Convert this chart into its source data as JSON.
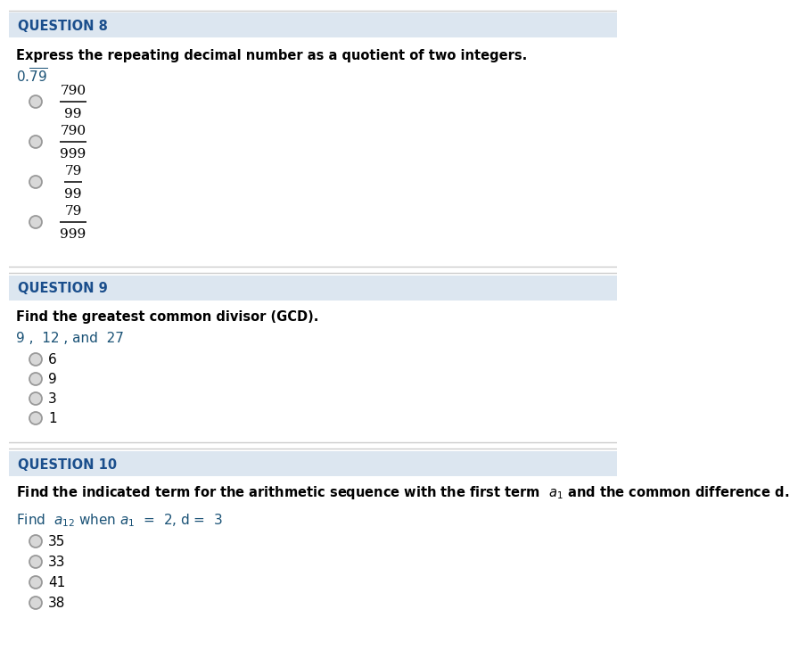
{
  "bg_color": "#ffffff",
  "border_color": "#cccccc",
  "q8_header": "QUESTION 8",
  "q8_instruction": "Express the repeating decimal number as a quotient of two integers.",
  "q8_problem": "0.$\\overline{79}$",
  "q8_options": [
    {
      "num": "790",
      "den": "99"
    },
    {
      "num": "790",
      "den": "999"
    },
    {
      "num": "79",
      "den": "99"
    },
    {
      "num": "79",
      "den": "999"
    }
  ],
  "q9_header": "QUESTION 9",
  "q9_instruction": "Find the greatest common divisor (GCD).",
  "q9_problem": "9 ,  12 , and  27",
  "q9_options": [
    "6",
    "9",
    "3",
    "1"
  ],
  "q10_header": "QUESTION 10",
  "q10_instruction": "Find the indicated term for the arithmetic sequence with the first term  $a_1$ and the common difference d.",
  "q10_problem": "Find  $a_{12}$ when $a_1$  =  2, d =  3",
  "q10_options": [
    "35",
    "33",
    "41",
    "38"
  ],
  "header_color": "#1a4e8c",
  "header_bg": "#dce6f0",
  "text_color": "#000000",
  "problem_color": "#1a5276",
  "line_color": "#cccccc",
  "circle_face": "#d8d8d8",
  "circle_edge": "#999999"
}
